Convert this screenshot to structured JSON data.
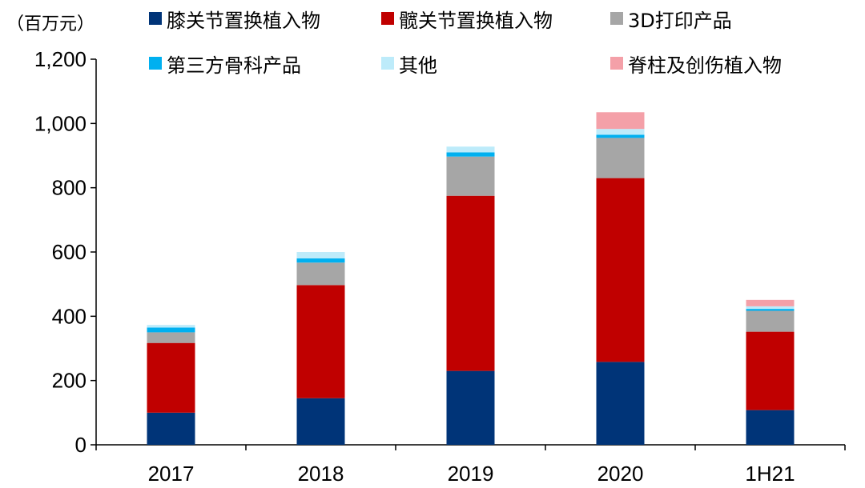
{
  "chart_data": {
    "type": "bar",
    "stacked": true,
    "title": "",
    "unit_label": "（百万元）",
    "xlabel": "",
    "ylabel": "",
    "categories": [
      "2017",
      "2018",
      "2019",
      "2020",
      "1H21"
    ],
    "ylim": [
      0,
      1200
    ],
    "yticks": [
      0,
      200,
      400,
      600,
      800,
      1000,
      1200
    ],
    "ytick_labels": [
      "0",
      "200",
      "400",
      "600",
      "800",
      "1,000",
      "1,200"
    ],
    "grid": false,
    "legend_position": "top",
    "series": [
      {
        "name": "膝关节置换植入物",
        "color": "#003478",
        "values": [
          100,
          145,
          230,
          258,
          108
        ]
      },
      {
        "name": "髋关节置换植入物",
        "color": "#C00000",
        "values": [
          217,
          352,
          545,
          572,
          244
        ]
      },
      {
        "name": "3D打印产品",
        "color": "#A6A6A6",
        "values": [
          33,
          70,
          122,
          125,
          65
        ]
      },
      {
        "name": "第三方骨科产品",
        "color": "#00B0F0",
        "values": [
          15,
          13,
          13,
          10,
          6
        ]
      },
      {
        "name": "其他",
        "color": "#BDEBFA",
        "values": [
          8,
          20,
          18,
          18,
          8
        ]
      },
      {
        "name": "脊柱及创伤植入物",
        "color": "#F4A0A8",
        "values": [
          0,
          0,
          0,
          52,
          20
        ]
      }
    ]
  }
}
